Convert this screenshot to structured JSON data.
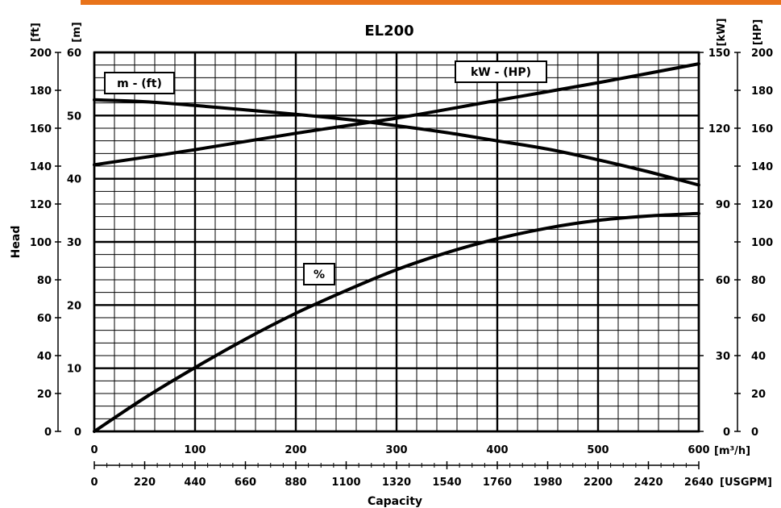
{
  "chart_data": {
    "type": "line",
    "title": "EL200",
    "xlabel": "Capacity",
    "ylabel": "Head",
    "x_primary": {
      "unit": "[m³/h]",
      "range": [
        0,
        600
      ],
      "ticks": [
        0,
        100,
        200,
        300,
        400,
        500,
        600
      ]
    },
    "x_secondary": {
      "unit": "[USGPM]",
      "range": [
        0,
        2640
      ],
      "ticks": [
        0,
        220,
        440,
        660,
        880,
        1100,
        1320,
        1540,
        1760,
        1980,
        2200,
        2420,
        2640
      ]
    },
    "y_left_m": {
      "unit": "[m]",
      "range": [
        0,
        60
      ],
      "ticks": [
        0,
        10,
        20,
        30,
        40,
        50,
        60
      ]
    },
    "y_left_ft": {
      "unit": "[ft]",
      "range": [
        0,
        200
      ],
      "ticks": [
        0,
        20,
        40,
        60,
        80,
        100,
        120,
        140,
        160,
        180,
        200
      ]
    },
    "y_right_kw": {
      "unit": "[kW]",
      "range": [
        0,
        150
      ],
      "ticks": [
        0,
        30,
        60,
        90,
        120,
        150
      ]
    },
    "y_right_hp": {
      "unit": "[HP]",
      "range": [
        0,
        200
      ],
      "ticks": [
        0,
        20,
        40,
        60,
        80,
        100,
        120,
        140,
        160,
        180,
        200
      ]
    },
    "grid": true,
    "series": [
      {
        "name": "m - (ft)",
        "axis": "m",
        "x": [
          0,
          50,
          100,
          150,
          200,
          250,
          300,
          350,
          400,
          450,
          500,
          550,
          600
        ],
        "y": [
          52.5,
          52.2,
          51.6,
          50.9,
          50.2,
          49.4,
          48.4,
          47.3,
          46.0,
          44.7,
          43.0,
          41.1,
          39.0
        ]
      },
      {
        "name": "kW - (HP)",
        "axis": "kw",
        "x": [
          0,
          100,
          200,
          300,
          400,
          500,
          600
        ],
        "y": [
          105.5,
          111.5,
          118.0,
          124.0,
          131.0,
          138.0,
          145.5
        ]
      },
      {
        "name": "%",
        "axis": "m",
        "x": [
          0,
          50,
          100,
          150,
          200,
          250,
          300,
          350,
          400,
          450,
          500,
          550,
          600
        ],
        "y": [
          0,
          5.3,
          10.1,
          14.6,
          18.7,
          22.3,
          25.6,
          28.3,
          30.5,
          32.2,
          33.4,
          34.1,
          34.5
        ]
      }
    ]
  }
}
